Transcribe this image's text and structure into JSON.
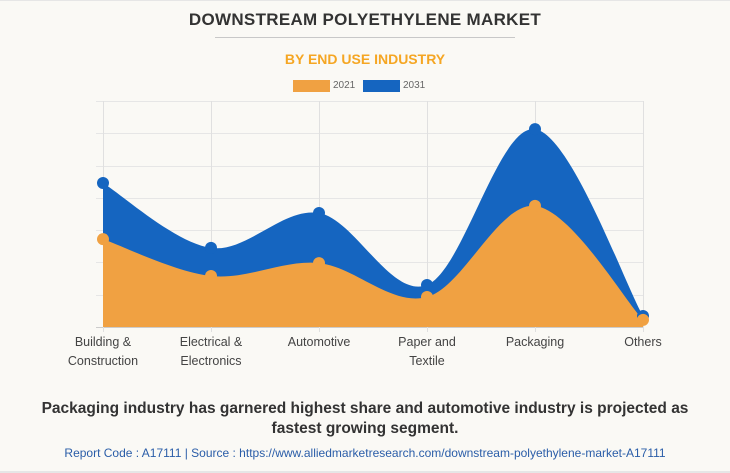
{
  "chart_data": {
    "type": "area",
    "title": "DOWNSTREAM POLYETHYLENE MARKET",
    "subtitle": "BY END USE INDUSTRY",
    "xlabel": "",
    "ylabel": "",
    "categories": [
      "Building & Construction",
      "Electrical & Electronics",
      "Automotive",
      "Paper and Textile",
      "Packaging",
      "Others"
    ],
    "category_lines": [
      [
        "Building &",
        "Construction"
      ],
      [
        "Electrical &",
        "Electronics"
      ],
      [
        "Automotive"
      ],
      [
        "Paper and",
        "Textile"
      ],
      [
        "Packaging"
      ],
      [
        "Others"
      ]
    ],
    "series": [
      {
        "name": "2021",
        "color": "#f0a142",
        "values": [
          2.72,
          1.58,
          1.98,
          0.93,
          3.75,
          0.22
        ]
      },
      {
        "name": "2031",
        "color": "#1565c0",
        "values": [
          4.46,
          2.45,
          3.53,
          1.3,
          6.13,
          0.34
        ]
      }
    ],
    "ylim": [
      0,
      7
    ],
    "y_ticks_labeled": false,
    "y_gridlines": 7,
    "grid": true,
    "smooth": true,
    "legend_position": "top-center"
  },
  "caption": "Packaging industry has garnered highest share and automotive industry is projected as fastest growing segment.",
  "source_line": "Report Code : A17111  |  Source : https://www.alliedmarketresearch.com/downstream-polyethylene-market-A17111"
}
